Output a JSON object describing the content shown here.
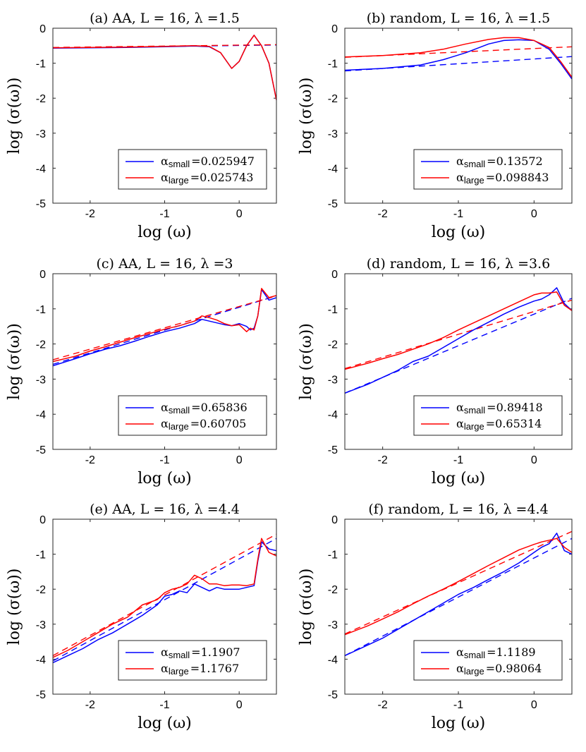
{
  "colors": {
    "blue": "#0000ff",
    "red": "#ff0000",
    "axis": "#262626"
  },
  "chart_data": [
    {
      "type": "line",
      "title": "(a) AA, L = 16, λ =1.5",
      "xlabel": "log (ω)",
      "ylabel": "log (σ(ω))",
      "xlim": [
        -2.5,
        0.5
      ],
      "ylim": [
        -5,
        0
      ],
      "xticks": [
        -2,
        -1,
        0
      ],
      "xtick_labels": [
        "-2",
        "-1",
        "0"
      ],
      "yticks": [
        0,
        -1,
        -2,
        -3,
        -4,
        -5
      ],
      "ytick_labels": [
        "0",
        "-1",
        "-2",
        "-3",
        "-4",
        "-5"
      ],
      "legend_position": "bottom-right",
      "series": [
        {
          "name": "α",
          "sub": "small",
          "value": "=0.025947",
          "color": "blue",
          "x": [
            -2.5,
            -2.0,
            -1.5,
            -1.0,
            -0.8,
            -0.6,
            -0.4,
            -0.25,
            -0.1,
            0.0,
            0.1,
            0.2,
            0.3,
            0.4,
            0.5
          ],
          "y": [
            -0.57,
            -0.56,
            -0.55,
            -0.53,
            -0.52,
            -0.51,
            -0.53,
            -0.7,
            -1.15,
            -0.95,
            -0.5,
            -0.2,
            -0.5,
            -1.0,
            -2.05
          ]
        },
        {
          "name": "α",
          "sub": "large",
          "value": "=0.025743",
          "color": "red",
          "x": [
            -2.5,
            -2.0,
            -1.5,
            -1.0,
            -0.8,
            -0.6,
            -0.4,
            -0.25,
            -0.1,
            0.0,
            0.1,
            0.2,
            0.3,
            0.4,
            0.5
          ],
          "y": [
            -0.56,
            -0.55,
            -0.54,
            -0.52,
            -0.51,
            -0.5,
            -0.52,
            -0.7,
            -1.15,
            -0.95,
            -0.5,
            -0.2,
            -0.5,
            -1.0,
            -2.05
          ]
        }
      ],
      "fits": [
        {
          "color": "blue",
          "x": [
            -2.5,
            0.5
          ],
          "y": [
            -0.56,
            -0.48
          ]
        },
        {
          "color": "red",
          "x": [
            -2.5,
            0.5
          ],
          "y": [
            -0.55,
            -0.47
          ]
        }
      ]
    },
    {
      "type": "line",
      "title": "(b) random, L = 16, λ =1.5",
      "xlabel": "log (ω)",
      "ylabel": "log (σ(ω))",
      "xlim": [
        -2.5,
        0.5
      ],
      "ylim": [
        -5,
        0
      ],
      "xticks": [
        -2,
        -1,
        0
      ],
      "xtick_labels": [
        "-2",
        "-1",
        "0"
      ],
      "yticks": [
        0,
        -1,
        -2,
        -3,
        -4,
        -5
      ],
      "ytick_labels": [
        "0",
        "-1",
        "-2",
        "-3",
        "-4",
        "-5"
      ],
      "legend_position": "bottom-right",
      "series": [
        {
          "name": "α",
          "sub": "small",
          "value": "=0.13572",
          "color": "blue",
          "x": [
            -2.5,
            -2.0,
            -1.5,
            -1.2,
            -0.9,
            -0.6,
            -0.4,
            -0.2,
            0.0,
            0.2,
            0.35,
            0.5
          ],
          "y": [
            -1.2,
            -1.15,
            -1.05,
            -0.9,
            -0.7,
            -0.45,
            -0.35,
            -0.33,
            -0.35,
            -0.6,
            -1.0,
            -1.45
          ]
        },
        {
          "name": "α",
          "sub": "large",
          "value": "=0.098843",
          "color": "red",
          "x": [
            -2.5,
            -2.0,
            -1.5,
            -1.2,
            -0.9,
            -0.6,
            -0.4,
            -0.2,
            0.0,
            0.2,
            0.35,
            0.5
          ],
          "y": [
            -0.82,
            -0.78,
            -0.7,
            -0.6,
            -0.45,
            -0.32,
            -0.27,
            -0.27,
            -0.35,
            -0.55,
            -0.95,
            -1.4
          ]
        }
      ],
      "fits": [
        {
          "color": "blue",
          "x": [
            -2.5,
            0.5
          ],
          "y": [
            -1.22,
            -0.81
          ]
        },
        {
          "color": "red",
          "x": [
            -2.5,
            0.5
          ],
          "y": [
            -0.83,
            -0.53
          ]
        }
      ]
    },
    {
      "type": "line",
      "title": "(c) AA, L = 16, λ =3",
      "xlabel": "log (ω)",
      "ylabel": "log (σ(ω))",
      "xlim": [
        -2.5,
        0.5
      ],
      "ylim": [
        -5,
        0
      ],
      "xticks": [
        -2,
        -1,
        0
      ],
      "xtick_labels": [
        "-2",
        "-1",
        "0"
      ],
      "yticks": [
        0,
        -1,
        -2,
        -3,
        -4,
        -5
      ],
      "ytick_labels": [
        "0",
        "-1",
        "-2",
        "-3",
        "-4",
        "-5"
      ],
      "legend_position": "bottom-right",
      "series": [
        {
          "name": "α",
          "sub": "small",
          "value": "=0.65836",
          "color": "blue",
          "x": [
            -2.5,
            -2.2,
            -2.0,
            -1.8,
            -1.6,
            -1.4,
            -1.2,
            -1.0,
            -0.8,
            -0.6,
            -0.5,
            -0.4,
            -0.3,
            -0.2,
            -0.1,
            0.0,
            0.1,
            0.15,
            0.2,
            0.25,
            0.3,
            0.4,
            0.5
          ],
          "y": [
            -2.62,
            -2.42,
            -2.28,
            -2.15,
            -2.05,
            -1.92,
            -1.78,
            -1.65,
            -1.55,
            -1.42,
            -1.3,
            -1.35,
            -1.4,
            -1.45,
            -1.48,
            -1.42,
            -1.5,
            -1.6,
            -1.55,
            -1.2,
            -0.45,
            -0.75,
            -0.68
          ]
        },
        {
          "name": "α",
          "sub": "large",
          "value": "=0.60705",
          "color": "red",
          "x": [
            -2.5,
            -2.2,
            -2.0,
            -1.8,
            -1.6,
            -1.4,
            -1.2,
            -1.0,
            -0.8,
            -0.6,
            -0.5,
            -0.4,
            -0.3,
            -0.2,
            -0.1,
            0.0,
            0.1,
            0.15,
            0.2,
            0.25,
            0.3,
            0.4,
            0.5
          ],
          "y": [
            -2.5,
            -2.35,
            -2.2,
            -2.08,
            -1.95,
            -1.82,
            -1.7,
            -1.58,
            -1.48,
            -1.35,
            -1.2,
            -1.25,
            -1.32,
            -1.42,
            -1.48,
            -1.45,
            -1.65,
            -1.55,
            -1.6,
            -1.2,
            -0.42,
            -0.68,
            -0.62
          ]
        }
      ],
      "fits": [
        {
          "color": "blue",
          "x": [
            -2.5,
            0.5
          ],
          "y": [
            -2.58,
            -0.63
          ]
        },
        {
          "color": "red",
          "x": [
            -2.5,
            0.5
          ],
          "y": [
            -2.45,
            -0.63
          ]
        }
      ]
    },
    {
      "type": "line",
      "title": "(d) random, L = 16, λ =3.6",
      "xlabel": "log (ω)",
      "ylabel": "log (σ(ω))",
      "xlim": [
        -2.5,
        0.5
      ],
      "ylim": [
        -5,
        0
      ],
      "xticks": [
        -2,
        -1,
        0
      ],
      "xtick_labels": [
        "-2",
        "-1",
        "0"
      ],
      "yticks": [
        0,
        -1,
        -2,
        -3,
        -4,
        -5
      ],
      "ytick_labels": [
        "0",
        "-1",
        "-2",
        "-3",
        "-4",
        "-5"
      ],
      "legend_position": "bottom-right",
      "series": [
        {
          "name": "α",
          "sub": "small",
          "value": "=0.89418",
          "color": "blue",
          "x": [
            -2.5,
            -2.2,
            -2.0,
            -1.8,
            -1.6,
            -1.4,
            -1.2,
            -1.0,
            -0.8,
            -0.6,
            -0.4,
            -0.2,
            0.0,
            0.1,
            0.2,
            0.3,
            0.4,
            0.5
          ],
          "y": [
            -3.4,
            -3.15,
            -2.95,
            -2.75,
            -2.5,
            -2.35,
            -2.1,
            -1.85,
            -1.6,
            -1.38,
            -1.15,
            -0.95,
            -0.78,
            -0.72,
            -0.6,
            -0.4,
            -0.85,
            -1.05
          ]
        },
        {
          "name": "α",
          "sub": "large",
          "value": "=0.65314",
          "color": "red",
          "x": [
            -2.5,
            -2.2,
            -2.0,
            -1.8,
            -1.6,
            -1.4,
            -1.2,
            -1.0,
            -0.8,
            -0.6,
            -0.4,
            -0.2,
            0.0,
            0.1,
            0.2,
            0.3,
            0.4,
            0.5
          ],
          "y": [
            -2.72,
            -2.55,
            -2.42,
            -2.3,
            -2.15,
            -2.0,
            -1.82,
            -1.6,
            -1.4,
            -1.2,
            -1.0,
            -0.8,
            -0.6,
            -0.55,
            -0.55,
            -0.52,
            -0.9,
            -1.05
          ]
        }
      ],
      "fits": [
        {
          "color": "blue",
          "x": [
            -2.5,
            0.5
          ],
          "y": [
            -3.4,
            -0.7
          ]
        },
        {
          "color": "red",
          "x": [
            -2.5,
            0.5
          ],
          "y": [
            -2.7,
            -0.75
          ]
        }
      ]
    },
    {
      "type": "line",
      "title": "(e) AA, L = 16, λ =4.4",
      "xlabel": "log (ω)",
      "ylabel": "log (σ(ω))",
      "xlim": [
        -2.5,
        0.5
      ],
      "ylim": [
        -5,
        0
      ],
      "xticks": [
        -2,
        -1,
        0
      ],
      "xtick_labels": [
        "-2",
        "-1",
        "0"
      ],
      "yticks": [
        0,
        -1,
        -2,
        -3,
        -4,
        -5
      ],
      "ytick_labels": [
        "0",
        "-1",
        "-2",
        "-3",
        "-4",
        "-5"
      ],
      "legend_position": "bottom-right",
      "series": [
        {
          "name": "α",
          "sub": "small",
          "value": "=1.1907",
          "color": "blue",
          "x": [
            -2.5,
            -2.3,
            -2.1,
            -1.9,
            -1.7,
            -1.5,
            -1.3,
            -1.1,
            -1.0,
            -0.9,
            -0.8,
            -0.7,
            -0.6,
            -0.5,
            -0.4,
            -0.3,
            -0.2,
            -0.1,
            0.0,
            0.1,
            0.2,
            0.25,
            0.3,
            0.4,
            0.5
          ],
          "y": [
            -4.1,
            -3.9,
            -3.7,
            -3.45,
            -3.25,
            -3.0,
            -2.75,
            -2.45,
            -2.2,
            -2.15,
            -2.05,
            -2.1,
            -1.85,
            -1.95,
            -2.05,
            -1.95,
            -2.0,
            -2.0,
            -2.0,
            -1.95,
            -1.9,
            -1.2,
            -0.65,
            -0.85,
            -0.9
          ]
        },
        {
          "name": "α",
          "sub": "large",
          "value": "=1.1767",
          "color": "red",
          "x": [
            -2.5,
            -2.3,
            -2.1,
            -1.9,
            -1.7,
            -1.5,
            -1.3,
            -1.1,
            -1.0,
            -0.9,
            -0.8,
            -0.7,
            -0.6,
            -0.5,
            -0.4,
            -0.3,
            -0.2,
            -0.1,
            0.0,
            0.1,
            0.2,
            0.25,
            0.3,
            0.4,
            0.5
          ],
          "y": [
            -3.95,
            -3.75,
            -3.5,
            -3.25,
            -3.0,
            -2.8,
            -2.45,
            -2.3,
            -2.1,
            -2.0,
            -1.95,
            -1.85,
            -1.6,
            -1.7,
            -1.85,
            -1.85,
            -1.9,
            -1.88,
            -1.88,
            -1.9,
            -1.85,
            -1.15,
            -0.55,
            -0.95,
            -1.05
          ]
        }
      ],
      "fits": [
        {
          "color": "blue",
          "x": [
            -2.5,
            0.5
          ],
          "y": [
            -4.05,
            -0.55
          ]
        },
        {
          "color": "red",
          "x": [
            -2.5,
            0.5
          ],
          "y": [
            -3.9,
            -0.43
          ]
        }
      ]
    },
    {
      "type": "line",
      "title": "(f) random, L = 16, λ =4.4",
      "xlabel": "log (ω)",
      "ylabel": "log (σ(ω))",
      "xlim": [
        -2.5,
        0.5
      ],
      "ylim": [
        -5,
        0
      ],
      "xticks": [
        -2,
        -1,
        0
      ],
      "xtick_labels": [
        "-2",
        "-1",
        "0"
      ],
      "yticks": [
        0,
        -1,
        -2,
        -3,
        -4,
        -5
      ],
      "ytick_labels": [
        "0",
        "-1",
        "-2",
        "-3",
        "-4",
        "-5"
      ],
      "legend_position": "bottom-right",
      "series": [
        {
          "name": "α",
          "sub": "small",
          "value": "=1.1189",
          "color": "blue",
          "x": [
            -2.5,
            -2.2,
            -2.0,
            -1.8,
            -1.6,
            -1.4,
            -1.2,
            -1.0,
            -0.8,
            -0.6,
            -0.4,
            -0.2,
            0.0,
            0.1,
            0.2,
            0.3,
            0.4,
            0.5
          ],
          "y": [
            -3.9,
            -3.6,
            -3.4,
            -3.15,
            -2.9,
            -2.65,
            -2.4,
            -2.15,
            -1.95,
            -1.72,
            -1.5,
            -1.25,
            -0.95,
            -0.8,
            -0.7,
            -0.4,
            -0.9,
            -1.0
          ]
        },
        {
          "name": "α",
          "sub": "large",
          "value": "=0.98064",
          "color": "red",
          "x": [
            -2.5,
            -2.2,
            -2.0,
            -1.8,
            -1.6,
            -1.4,
            -1.2,
            -1.0,
            -0.8,
            -0.6,
            -0.4,
            -0.2,
            0.0,
            0.1,
            0.2,
            0.3,
            0.4,
            0.5
          ],
          "y": [
            -3.3,
            -3.05,
            -2.85,
            -2.65,
            -2.42,
            -2.2,
            -2.0,
            -1.78,
            -1.55,
            -1.32,
            -1.1,
            -0.88,
            -0.72,
            -0.65,
            -0.6,
            -0.55,
            -0.8,
            -0.95
          ]
        }
      ],
      "fits": [
        {
          "color": "blue",
          "x": [
            -2.5,
            0.5
          ],
          "y": [
            -3.9,
            -0.55
          ]
        },
        {
          "color": "red",
          "x": [
            -2.5,
            0.5
          ],
          "y": [
            -3.28,
            -0.35
          ]
        }
      ]
    }
  ]
}
